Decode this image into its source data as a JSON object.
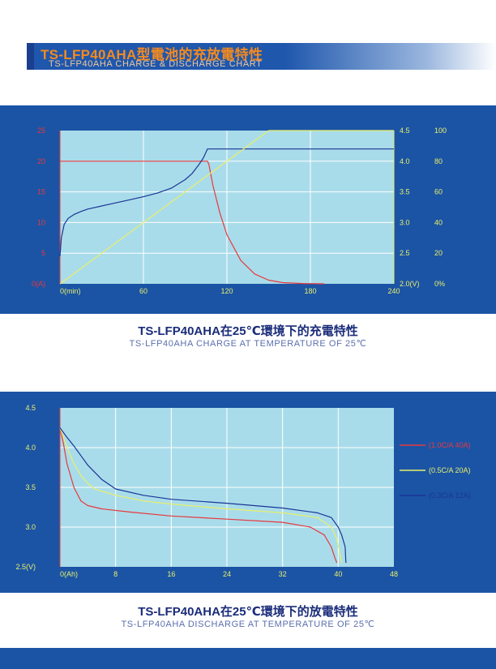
{
  "header": {
    "title": "TS-LFP40AHA型電池的充放電特性",
    "subtitle": "TS-LFP40AHA CHARGE & DISCHARGE CHART"
  },
  "charge_caption": {
    "title": "TS-LFP40AHA在25℃環境下的充電特性",
    "subtitle": "TS-LFP40AHA CHARGE AT TEMPERATURE OF 25℃"
  },
  "discharge_caption": {
    "title": "TS-LFP40AHA在25℃環境下的放電特性",
    "subtitle": "TS-LFP40AHA DISCHARGE AT TEMPERATURE OF 25℃"
  },
  "colors": {
    "panel": "#1b54a5",
    "plot_bg": "#a9dcea",
    "current": "#e8383d",
    "voltage": "#1a3596",
    "capacity": "#e8ef6a",
    "left_axis": "#e8383d",
    "right_axis": "#e8ef6a"
  },
  "chart_data": [
    {
      "type": "line",
      "xlim": [
        0,
        240
      ],
      "x_ticks": [
        0,
        60,
        120,
        180,
        240
      ],
      "x_tick_labels": [
        "0(min)",
        "60",
        "120",
        "180",
        "240"
      ],
      "y_left": {
        "ylim": [
          0,
          25
        ],
        "ticks": [
          0,
          5,
          10,
          15,
          20,
          25
        ],
        "tick_labels": [
          "0(A)",
          "5",
          "10",
          "15",
          "20",
          "25"
        ]
      },
      "y_right1": {
        "ylim": [
          2.0,
          4.5
        ],
        "ticks": [
          2.0,
          2.5,
          3.0,
          3.5,
          4.0,
          4.5
        ],
        "tick_labels": [
          "2.0(V)",
          "2.5",
          "3.0",
          "3.5",
          "4.0",
          "4.5"
        ]
      },
      "y_right2": {
        "ylim": [
          0,
          100
        ],
        "ticks": [
          0,
          20,
          40,
          60,
          80,
          100
        ],
        "tick_labels": [
          "0%",
          "20",
          "40",
          "60",
          "80",
          "100"
        ]
      },
      "grid": true,
      "series": [
        {
          "axis": "left",
          "color": "#e8383d",
          "x": [
            0,
            105,
            106,
            107,
            110,
            115,
            120,
            130,
            140,
            150,
            160,
            175,
            190
          ],
          "y": [
            20,
            20,
            20,
            19.5,
            16.0,
            11.5,
            8.0,
            3.8,
            1.6,
            0.6,
            0.2,
            0.05,
            0.0
          ]
        },
        {
          "axis": "right1",
          "color": "#1a3596",
          "x": [
            0,
            1,
            3,
            6,
            10,
            15,
            20,
            30,
            40,
            50,
            60,
            70,
            80,
            90,
            95,
            100,
            103,
            106,
            240
          ],
          "y": [
            2.45,
            2.75,
            2.97,
            3.07,
            3.13,
            3.18,
            3.22,
            3.27,
            3.32,
            3.37,
            3.42,
            3.48,
            3.56,
            3.7,
            3.8,
            3.95,
            4.05,
            4.2,
            4.2
          ]
        },
        {
          "axis": "right2",
          "color": "#e8ef6a",
          "x": [
            0,
            150,
            240
          ],
          "y": [
            0,
            100,
            100
          ]
        }
      ]
    },
    {
      "type": "line",
      "xlim": [
        0,
        48
      ],
      "x_ticks": [
        0,
        8,
        16,
        24,
        32,
        40,
        48
      ],
      "x_tick_labels": [
        "0(Ah)",
        "8",
        "16",
        "24",
        "32",
        "40",
        "48"
      ],
      "ylim": [
        2.5,
        4.5
      ],
      "y_ticks": [
        2.5,
        3.0,
        3.5,
        4.0,
        4.5
      ],
      "y_tick_labels": [
        "2.5(V)",
        "3.0",
        "3.5",
        "4.0",
        "4.5"
      ],
      "grid": true,
      "legend_position": "right",
      "series": [
        {
          "name": "(1.0C/A 40A)",
          "color": "#e8383d",
          "x": [
            0,
            0.5,
            1,
            2,
            3,
            4,
            6,
            10,
            16,
            24,
            32,
            36,
            38,
            39,
            39.5,
            39.8
          ],
          "y": [
            4.25,
            4.05,
            3.8,
            3.5,
            3.33,
            3.27,
            3.23,
            3.19,
            3.14,
            3.1,
            3.06,
            3.0,
            2.9,
            2.75,
            2.62,
            2.55
          ]
        },
        {
          "name": "(0.5C/A 20A)",
          "color": "#e8ef6a",
          "x": [
            0,
            1,
            2,
            3,
            4,
            5,
            8,
            12,
            16,
            24,
            32,
            37,
            39,
            39.8,
            40.2,
            40.5
          ],
          "y": [
            4.25,
            4.0,
            3.8,
            3.65,
            3.55,
            3.48,
            3.4,
            3.33,
            3.29,
            3.23,
            3.18,
            3.12,
            3.0,
            2.85,
            2.68,
            2.55
          ]
        },
        {
          "name": "(0.3C/A 12A)",
          "color": "#1a3596",
          "x": [
            0,
            1,
            2,
            3,
            4,
            6,
            8,
            12,
            16,
            24,
            32,
            37,
            39,
            40,
            40.5,
            41,
            41.1
          ],
          "y": [
            4.25,
            4.13,
            4.02,
            3.9,
            3.78,
            3.6,
            3.48,
            3.4,
            3.35,
            3.3,
            3.24,
            3.18,
            3.12,
            3.0,
            2.9,
            2.75,
            2.55
          ]
        }
      ]
    }
  ]
}
